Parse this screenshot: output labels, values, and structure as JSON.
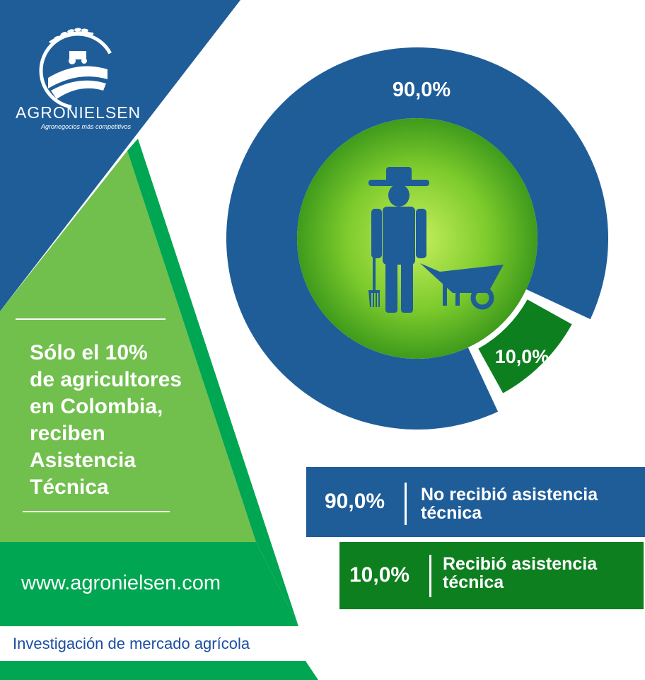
{
  "brand": {
    "name": "AGRONIELSEN",
    "tagline": "Agronegocios más competitivos"
  },
  "headline": {
    "lines": [
      "Sólo el 10%",
      "de agricultores",
      "en Colombia,",
      "reciben",
      "Asistencia",
      "Técnica"
    ]
  },
  "website": "www.agronielsen.com",
  "research": "Investigación de mercado agrícola",
  "colors": {
    "blue": "#1f5d99",
    "dark_green": "#0e7f1f",
    "mid_green": "#00a651",
    "light_green": "#71bf4d",
    "research_text": "#1d4ea0"
  },
  "center_icon": "farmer-with-wheelbarrow-icon",
  "chart_data": {
    "type": "pie",
    "style": "donut",
    "slices": [
      {
        "label": "No recibió asistencia técnica",
        "value": 90.0,
        "value_label": "90,0%",
        "color": "#1f5d99"
      },
      {
        "label": "Recibió asistencia técnica",
        "value": 10.0,
        "value_label": "10,0%",
        "color": "#0e7f1f"
      }
    ]
  },
  "legend": [
    {
      "value": "90,0%",
      "line1": "No recibió asistencia",
      "line2": "técnica"
    },
    {
      "value": "10,0%",
      "line1": "Recibió asistencia",
      "line2": "técnica"
    }
  ]
}
